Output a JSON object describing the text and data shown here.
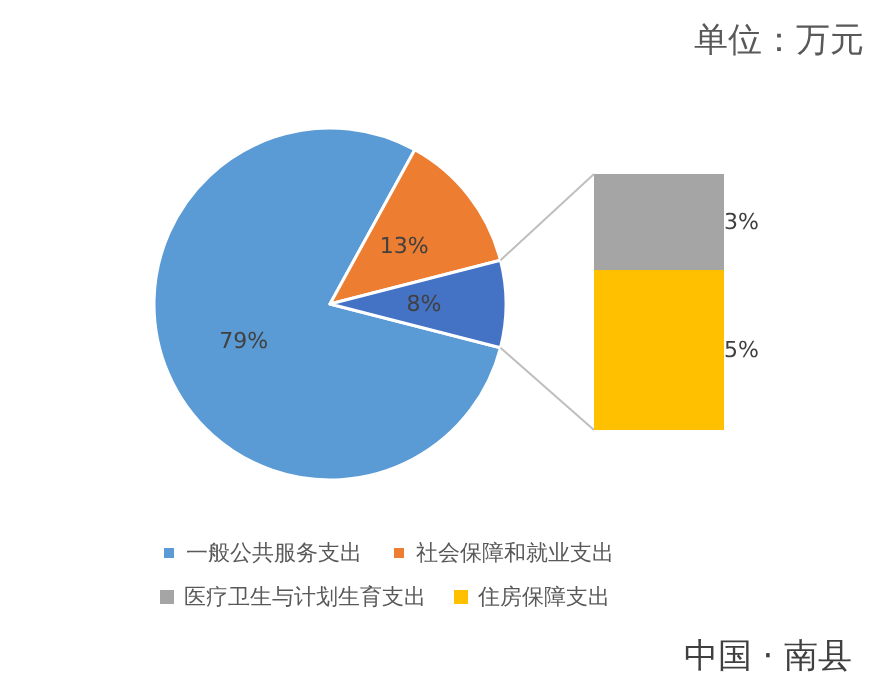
{
  "chart_data": [
    {
      "type": "pie",
      "subtitle": "单位：万元",
      "categories": [
        "一般公共服务支出",
        "社会保障和就业支出",
        null
      ],
      "values": [
        79,
        13,
        8
      ],
      "colors": [
        "#5b9bd5",
        "#ed7d31",
        "#4472c4"
      ],
      "value_labels": [
        "79%",
        "13%",
        "8%"
      ],
      "legend": "bottom",
      "annotations": [
        "中国 · 南县"
      ]
    },
    {
      "type": "bar",
      "stacked": true,
      "categories": [
        null
      ],
      "ylim": [
        0,
        8
      ],
      "tick_labels": false,
      "legend": "bottom",
      "series": [
        {
          "name": "住房保障支出",
          "color": "#ffc000",
          "values": [
            5
          ],
          "value_labels": [
            "5%"
          ]
        },
        {
          "name": "医疗卫生与计划生育支出",
          "color": "#a5a5a5",
          "values": [
            3
          ],
          "value_labels": [
            "3%"
          ]
        }
      ]
    }
  ]
}
